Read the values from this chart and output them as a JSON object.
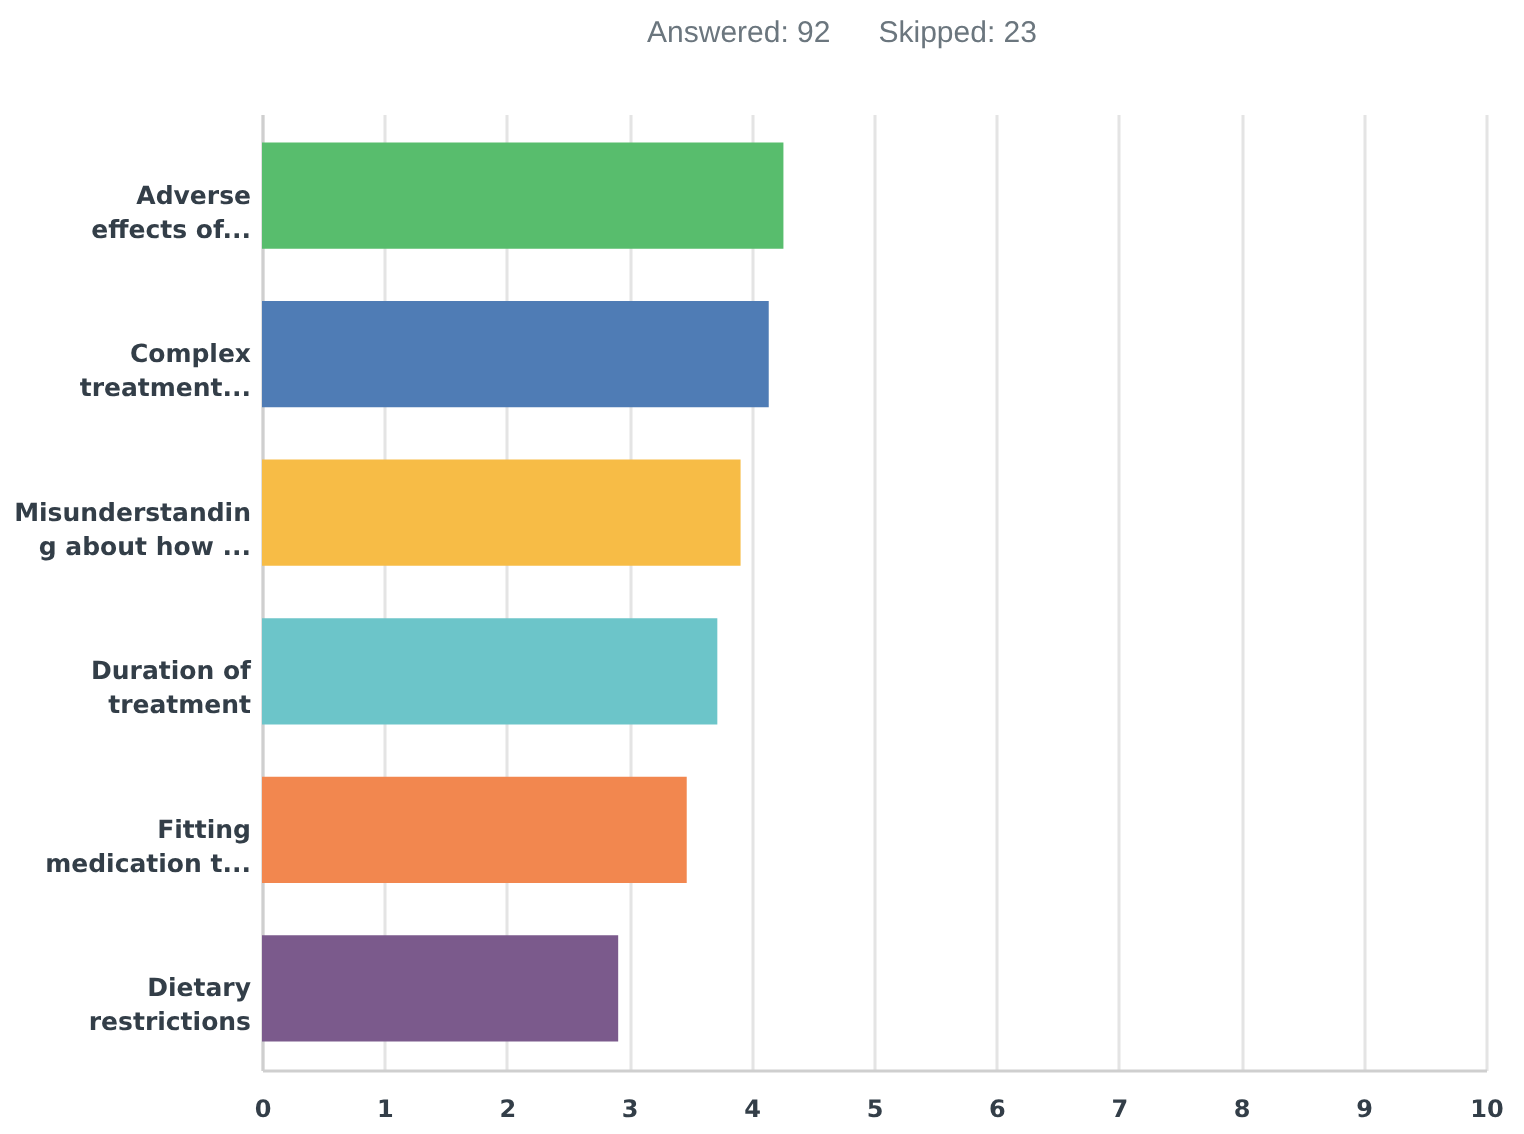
{
  "chart_data": {
    "type": "bar",
    "orientation": "horizontal",
    "annotations": [
      "Answered: 92",
      "Skipped: 23"
    ],
    "categories": [
      "Adverse\neffects of...",
      "Complex\ntreatment...",
      "Misunderstandin\ng about how ...",
      "Duration of\ntreatment",
      "Fitting\nmedication t...",
      "Dietary\nrestrictions"
    ],
    "values": [
      4.26,
      4.14,
      3.91,
      3.72,
      3.47,
      2.91
    ],
    "colors": [
      "#58bd6d",
      "#4f7cb5",
      "#f7bc46",
      "#6cc5c9",
      "#f2874f",
      "#7b5a8c"
    ],
    "xlim": [
      0,
      10
    ],
    "xticks": [
      0,
      1,
      2,
      3,
      4,
      5,
      6,
      7,
      8,
      9,
      10
    ],
    "grid": "x"
  }
}
